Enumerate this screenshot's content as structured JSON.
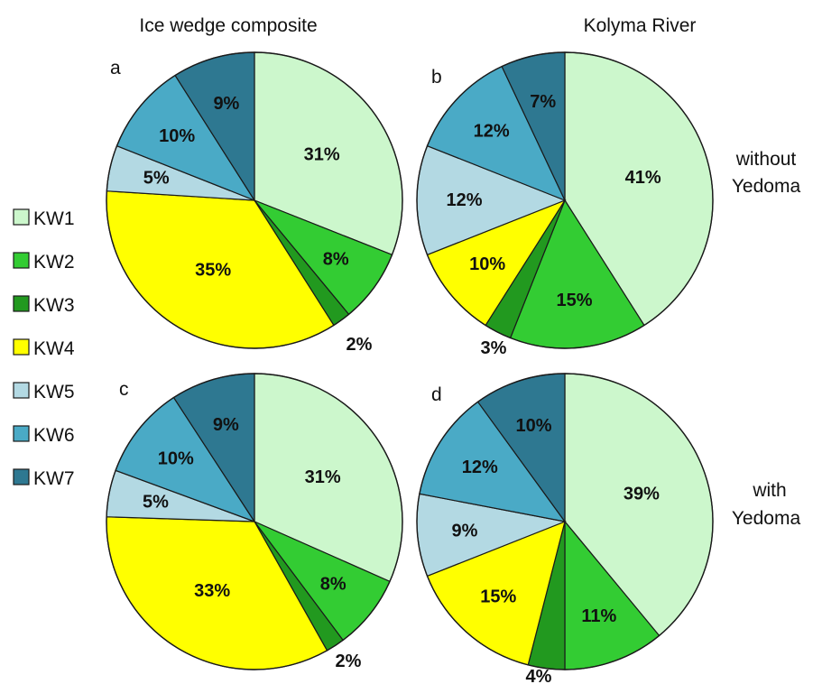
{
  "column_titles": [
    "Ice wedge composite",
    "Kolyma River"
  ],
  "row_labels": [
    [
      "without",
      "Yedoma"
    ],
    [
      "with",
      "Yedoma"
    ]
  ],
  "legend": [
    {
      "label": "KW1",
      "color": "#ccf7cc"
    },
    {
      "label": "KW2",
      "color": "#33cc33"
    },
    {
      "label": "KW3",
      "color": "#22991f"
    },
    {
      "label": "KW4",
      "color": "#ffff00"
    },
    {
      "label": "KW5",
      "color": "#b3d9e3"
    },
    {
      "label": "KW6",
      "color": "#4aaac6"
    },
    {
      "label": "KW7",
      "color": "#2e7891"
    }
  ],
  "chart_data": [
    {
      "type": "pie",
      "panel": "a",
      "categories": [
        "KW1",
        "KW2",
        "KW3",
        "KW4",
        "KW5",
        "KW6",
        "KW7"
      ],
      "values": [
        31,
        8,
        2,
        35,
        5,
        10,
        9
      ],
      "labels": [
        "31%",
        "8%",
        "2%",
        "35%",
        "5%",
        "10%",
        "9%"
      ]
    },
    {
      "type": "pie",
      "panel": "b",
      "categories": [
        "KW1",
        "KW2",
        "KW3",
        "KW4",
        "KW5",
        "KW6",
        "KW7"
      ],
      "values": [
        41,
        15,
        3,
        10,
        12,
        12,
        7
      ],
      "labels": [
        "41%",
        "15%",
        "3%",
        "10%",
        "12%",
        "12%",
        "7%"
      ]
    },
    {
      "type": "pie",
      "panel": "c",
      "categories": [
        "KW1",
        "KW2",
        "KW3",
        "KW4",
        "KW5",
        "KW6",
        "KW7"
      ],
      "values": [
        31,
        8,
        2,
        33,
        5,
        10,
        9
      ],
      "labels": [
        "31%",
        "8%",
        "2%",
        "33%",
        "5%",
        "10%",
        "9%"
      ]
    },
    {
      "type": "pie",
      "panel": "d",
      "categories": [
        "KW1",
        "KW2",
        "KW3",
        "KW4",
        "KW5",
        "KW6",
        "KW7"
      ],
      "values": [
        39,
        11,
        4,
        15,
        9,
        12,
        10
      ],
      "labels": [
        "39%",
        "11%",
        "4%",
        "15%",
        "9%",
        "12%",
        "10%"
      ]
    }
  ]
}
